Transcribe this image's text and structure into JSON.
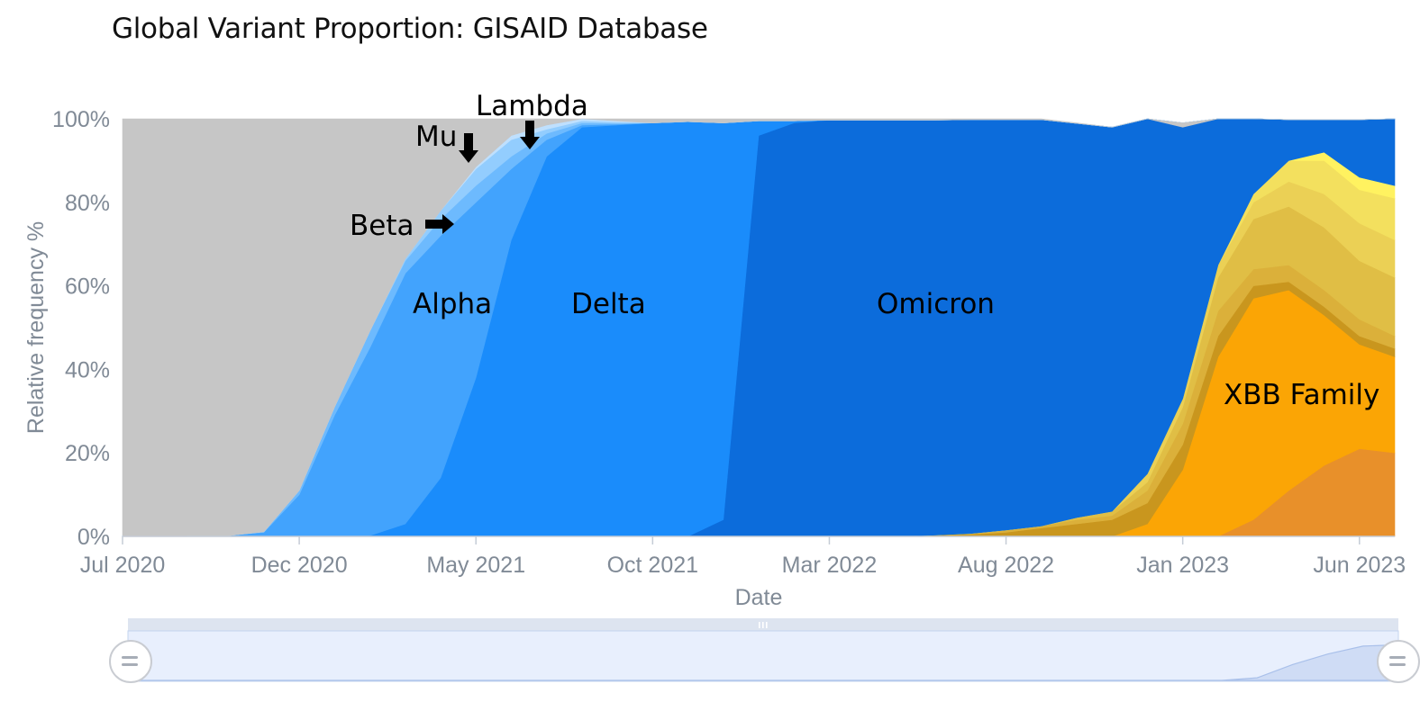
{
  "chart_data": {
    "type": "area",
    "stacked": true,
    "title": "Global Variant Proportion: GISAID Database",
    "xlabel": "Date",
    "ylabel": "Relative frequency %",
    "x_tick_labels": [
      "Jul 2020",
      "Dec 2020",
      "May 2021",
      "Oct 2021",
      "Mar 2022",
      "Aug 2022",
      "Jan 2023",
      "Jun 2023"
    ],
    "y_tick_labels": [
      "0%",
      "20%",
      "40%",
      "60%",
      "80%",
      "100%"
    ],
    "ylim": [
      0,
      100
    ],
    "grid": false,
    "x": [
      "2020-07",
      "2020-08",
      "2020-09",
      "2020-10",
      "2020-11",
      "2020-12",
      "2021-01",
      "2021-02",
      "2021-03",
      "2021-04",
      "2021-05",
      "2021-06",
      "2021-07",
      "2021-08",
      "2021-09",
      "2021-10",
      "2021-11",
      "2021-12",
      "2022-01",
      "2022-02",
      "2022-03",
      "2022-04",
      "2022-05",
      "2022-06",
      "2022-07",
      "2022-08",
      "2022-09",
      "2022-10",
      "2022-11",
      "2022-12",
      "2023-01",
      "2023-02",
      "2023-03",
      "2023-04",
      "2023-05",
      "2023-06",
      "2023-07"
    ],
    "series": [
      {
        "color": "#e8902a",
        "values": [
          0,
          0,
          0,
          0,
          0,
          0,
          0,
          0,
          0,
          0,
          0,
          0,
          0,
          0,
          0,
          0,
          0,
          0,
          0,
          0,
          0,
          0,
          0,
          0,
          0,
          0,
          0,
          0,
          0,
          0,
          0,
          0,
          4,
          11,
          17,
          21,
          20
        ]
      },
      {
        "color": "#fba505",
        "values": [
          0,
          0,
          0,
          0,
          0,
          0,
          0,
          0,
          0,
          0,
          0,
          0,
          0,
          0,
          0,
          0,
          0,
          0,
          0,
          0,
          0,
          0,
          0,
          0,
          0,
          0,
          0,
          0,
          0,
          3,
          16,
          43,
          53,
          48,
          36,
          25,
          23
        ]
      },
      {
        "color": "#c9961e",
        "values": [
          0,
          0,
          0,
          0,
          0,
          0,
          0,
          0,
          0,
          0,
          0,
          0,
          0,
          0,
          0,
          0,
          0,
          0,
          0,
          0,
          0,
          0,
          0,
          0.3,
          0.5,
          1,
          2,
          3,
          4,
          5,
          6,
          5,
          3,
          2,
          2,
          2,
          2
        ]
      },
      {
        "color": "#dbb03a",
        "values": [
          0,
          0,
          0,
          0,
          0,
          0,
          0,
          0,
          0,
          0,
          0,
          0,
          0,
          0,
          0,
          0,
          0,
          0,
          0,
          0,
          0,
          0,
          0,
          0,
          0.2,
          0.5,
          0.5,
          1,
          1,
          3,
          5,
          6,
          4,
          4,
          4,
          4,
          3
        ]
      },
      {
        "color": "#e0be45",
        "values": [
          0,
          0,
          0,
          0,
          0,
          0,
          0,
          0,
          0,
          0,
          0,
          0,
          0,
          0,
          0,
          0,
          0,
          0,
          0,
          0,
          0,
          0,
          0,
          0,
          0,
          0,
          0,
          0.5,
          1,
          2,
          4,
          8,
          12,
          14,
          15,
          14,
          14
        ]
      },
      {
        "color": "#ebd055",
        "values": [
          0,
          0,
          0,
          0,
          0,
          0,
          0,
          0,
          0,
          0,
          0,
          0,
          0,
          0,
          0,
          0,
          0,
          0,
          0,
          0,
          0,
          0,
          0,
          0,
          0,
          0,
          0,
          0,
          0,
          2,
          2,
          3,
          4,
          6,
          8,
          9,
          9
        ]
      },
      {
        "color": "#f3e05e",
        "values": [
          0,
          0,
          0,
          0,
          0,
          0,
          0,
          0,
          0,
          0,
          0,
          0,
          0,
          0,
          0,
          0,
          0,
          0,
          0,
          0,
          0,
          0,
          0,
          0,
          0,
          0,
          0,
          0,
          0,
          0,
          0,
          0,
          2,
          5,
          8,
          8,
          10
        ]
      },
      {
        "color": "#fff260",
        "values": [
          0,
          0,
          0,
          0,
          0,
          0,
          0,
          0,
          0,
          0,
          0,
          0,
          0,
          0,
          0,
          0,
          0,
          0,
          0,
          0,
          0,
          0,
          0,
          0,
          0,
          0,
          0,
          0,
          0,
          0,
          0,
          0,
          0,
          0,
          2,
          3,
          3
        ]
      },
      {
        "name": "Omicron",
        "color": "#0c6cdb",
        "values": [
          0,
          0,
          0,
          0,
          0,
          0,
          0,
          0,
          0,
          0,
          0,
          0,
          0,
          0,
          0,
          0,
          0,
          4,
          96,
          99,
          99.7,
          99.7,
          99.7,
          99.4,
          99.1,
          98.3,
          97.3,
          94.4,
          92,
          85,
          66,
          38,
          18,
          9.8,
          7.8,
          13.8,
          16
        ]
      },
      {
        "name": "Delta",
        "color": "#1a8cfb",
        "values": [
          0,
          0,
          0,
          0,
          0,
          0,
          0,
          0.2,
          3,
          14,
          38,
          71,
          91,
          98,
          98.5,
          99,
          99.3,
          95,
          3.5,
          0.5,
          0,
          0,
          0,
          0,
          0,
          0,
          0,
          0,
          0,
          0,
          0,
          0,
          0,
          0,
          0,
          0,
          0
        ]
      },
      {
        "name": "Alpha",
        "color": "#42a3fd",
        "values": [
          0.1,
          0.1,
          0.2,
          0.2,
          1,
          10,
          29,
          45,
          60,
          58,
          42,
          17,
          4,
          0.5,
          0.2,
          0,
          0,
          0,
          0,
          0,
          0,
          0,
          0,
          0,
          0,
          0,
          0,
          0,
          0,
          0,
          0,
          0,
          0,
          0,
          0,
          0,
          0
        ]
      },
      {
        "name": "Beta",
        "color": "#6dbafe",
        "values": [
          0,
          0,
          0,
          0,
          0.1,
          1,
          2,
          4,
          3,
          4,
          4,
          3,
          1.5,
          0.5,
          0.2,
          0,
          0,
          0,
          0,
          0,
          0,
          0,
          0,
          0,
          0,
          0,
          0,
          0,
          0,
          0,
          0,
          0,
          0,
          0,
          0,
          0,
          0
        ]
      },
      {
        "name": "Mu",
        "color": "#93cdfe",
        "values": [
          0,
          0,
          0,
          0,
          0,
          0,
          0,
          0,
          0.5,
          2,
          4,
          4,
          1,
          0.5,
          0.3,
          0,
          0,
          0,
          0,
          0,
          0,
          0,
          0,
          0,
          0,
          0,
          0,
          0,
          0,
          0,
          0,
          0,
          0,
          0,
          0,
          0,
          0
        ]
      },
      {
        "name": "Lambda",
        "color": "#bfe0fe",
        "values": [
          0,
          0,
          0,
          0,
          0,
          0,
          0,
          0,
          0,
          0,
          0.5,
          1,
          1,
          0.5,
          0.3,
          0,
          0,
          0,
          0,
          0,
          0,
          0,
          0,
          0,
          0,
          0,
          0,
          0,
          0,
          0,
          0,
          0,
          0,
          0,
          0,
          0,
          0
        ]
      },
      {
        "color": "#c6c6c6",
        "values": [
          99.9,
          99.9,
          99.8,
          99.8,
          98.9,
          89,
          69,
          50.8,
          33.5,
          22,
          11.5,
          4,
          1.5,
          0.5,
          0.5,
          1,
          0.7,
          1,
          0.5,
          0.5,
          0.3,
          0.3,
          0.3,
          0.3,
          0.2,
          0.2,
          0.2,
          0.1,
          0,
          0,
          -1,
          0,
          0,
          0,
          0,
          0,
          0
        ]
      }
    ],
    "annotations": [
      {
        "text": "Alpha"
      },
      {
        "text": "Delta"
      },
      {
        "text": "Omicron"
      },
      {
        "text": "XBB Family"
      },
      {
        "text": "Beta"
      },
      {
        "text": "Mu"
      },
      {
        "text": "Lambda"
      }
    ],
    "navigator": {
      "overview_values": [
        0,
        0,
        0,
        0,
        0,
        0,
        0,
        0,
        0,
        0,
        0,
        0,
        0,
        0,
        0,
        0,
        0,
        0,
        0,
        0,
        0,
        0,
        0,
        0,
        0,
        0,
        0,
        0,
        0,
        0,
        0,
        0,
        2,
        12,
        20,
        26,
        27
      ],
      "ylim": [
        0,
        30
      ]
    }
  }
}
